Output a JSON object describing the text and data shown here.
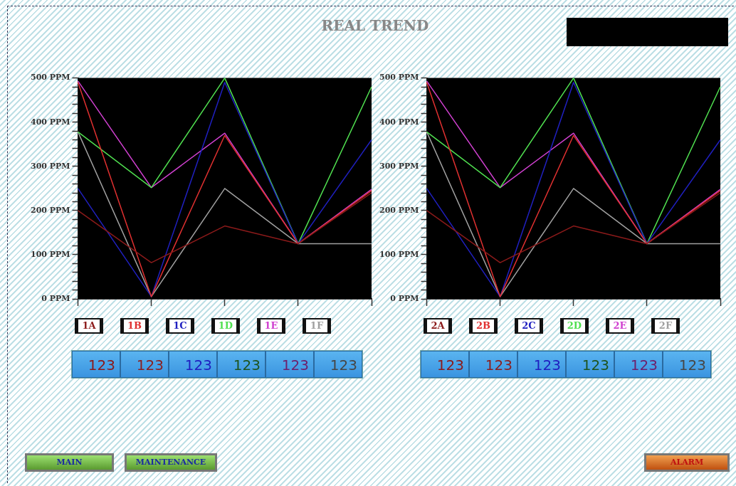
{
  "chart_data": [
    {
      "type": "line",
      "categories": [
        null,
        null,
        null,
        null,
        null
      ],
      "ylim": [
        0,
        500
      ],
      "yticks": [
        {
          "value": 0,
          "label": "0 PPM"
        },
        {
          "value": 20,
          "label": null
        },
        {
          "value": 40,
          "label": null
        },
        {
          "value": 60,
          "label": null
        },
        {
          "value": 80,
          "label": null
        },
        {
          "value": 100,
          "label": "100 PPM"
        },
        {
          "value": 120,
          "label": null
        },
        {
          "value": 140,
          "label": null
        },
        {
          "value": 160,
          "label": null
        },
        {
          "value": 180,
          "label": null
        },
        {
          "value": 200,
          "label": "200 PPM"
        },
        {
          "value": 220,
          "label": null
        },
        {
          "value": 240,
          "label": null
        },
        {
          "value": 260,
          "label": null
        },
        {
          "value": 280,
          "label": null
        },
        {
          "value": 300,
          "label": "300 PPM"
        },
        {
          "value": 320,
          "label": null
        },
        {
          "value": 340,
          "label": null
        },
        {
          "value": 360,
          "label": null
        },
        {
          "value": 380,
          "label": null
        },
        {
          "value": 400,
          "label": "400 PPM"
        },
        {
          "value": 420,
          "label": null
        },
        {
          "value": 440,
          "label": null
        },
        {
          "value": 460,
          "label": null
        },
        {
          "value": 480,
          "label": null
        },
        {
          "value": 500,
          "label": "500 PPM"
        }
      ],
      "grid": false,
      "legend": "bottom",
      "marker": "none",
      "line_style": "solid",
      "tick_labels": "y",
      "series": [
        {
          "name": "1A",
          "color": "#8b1a1a",
          "values": [
            200,
            82,
            165,
            125,
            240
          ]
        },
        {
          "name": "1B",
          "color": "#e03030",
          "values": [
            490,
            5,
            370,
            125,
            245
          ]
        },
        {
          "name": "1C",
          "color": "#2020c0",
          "values": [
            250,
            5,
            490,
            125,
            360
          ]
        },
        {
          "name": "1D",
          "color": "#50e050",
          "values": [
            378,
            252,
            500,
            125,
            480
          ]
        },
        {
          "name": "1E",
          "color": "#d040d0",
          "values": [
            493,
            252,
            375,
            125,
            248
          ]
        },
        {
          "name": "1F",
          "color": "#a0a0a0",
          "values": [
            378,
            5,
            250,
            125,
            125
          ]
        }
      ],
      "annotations": [
        "123",
        "123",
        "123",
        "123",
        "123",
        "123"
      ]
    },
    {
      "type": "line",
      "categories": [
        null,
        null,
        null,
        null,
        null
      ],
      "ylim": [
        0,
        500
      ],
      "yticks": [
        {
          "value": 0,
          "label": "0 PPM"
        },
        {
          "value": 20,
          "label": null
        },
        {
          "value": 40,
          "label": null
        },
        {
          "value": 60,
          "label": null
        },
        {
          "value": 80,
          "label": null
        },
        {
          "value": 100,
          "label": "100 PPM"
        },
        {
          "value": 120,
          "label": null
        },
        {
          "value": 140,
          "label": null
        },
        {
          "value": 160,
          "label": null
        },
        {
          "value": 180,
          "label": null
        },
        {
          "value": 200,
          "label": "200 PPM"
        },
        {
          "value": 220,
          "label": null
        },
        {
          "value": 240,
          "label": null
        },
        {
          "value": 260,
          "label": null
        },
        {
          "value": 280,
          "label": null
        },
        {
          "value": 300,
          "label": "300 PPM"
        },
        {
          "value": 320,
          "label": null
        },
        {
          "value": 340,
          "label": null
        },
        {
          "value": 360,
          "label": null
        },
        {
          "value": 380,
          "label": null
        },
        {
          "value": 400,
          "label": "400 PPM"
        },
        {
          "value": 420,
          "label": null
        },
        {
          "value": 440,
          "label": null
        },
        {
          "value": 460,
          "label": null
        },
        {
          "value": 480,
          "label": null
        },
        {
          "value": 500,
          "label": "500 PPM"
        }
      ],
      "grid": false,
      "legend": "bottom",
      "marker": "none",
      "line_style": "solid",
      "tick_labels": "y",
      "series": [
        {
          "name": "2A",
          "color": "#8b1a1a",
          "values": [
            200,
            82,
            165,
            125,
            240
          ]
        },
        {
          "name": "2B",
          "color": "#e03030",
          "values": [
            490,
            5,
            370,
            125,
            245
          ]
        },
        {
          "name": "2C",
          "color": "#2020c0",
          "values": [
            250,
            5,
            490,
            125,
            360
          ]
        },
        {
          "name": "2D",
          "color": "#50e050",
          "values": [
            378,
            252,
            500,
            125,
            480
          ]
        },
        {
          "name": "2E",
          "color": "#d040d0",
          "values": [
            493,
            252,
            375,
            125,
            248
          ]
        },
        {
          "name": "2F",
          "color": "#a0a0a0",
          "values": [
            378,
            5,
            250,
            125,
            125
          ]
        }
      ],
      "annotations": [
        "123",
        "123",
        "123",
        "123",
        "123",
        "123"
      ]
    },
    {
      "type": "other",
      "title": "REAL TREND",
      "annotations": [
        "MAIN",
        "MAINTENANCE",
        "ALARM"
      ]
    }
  ]
}
